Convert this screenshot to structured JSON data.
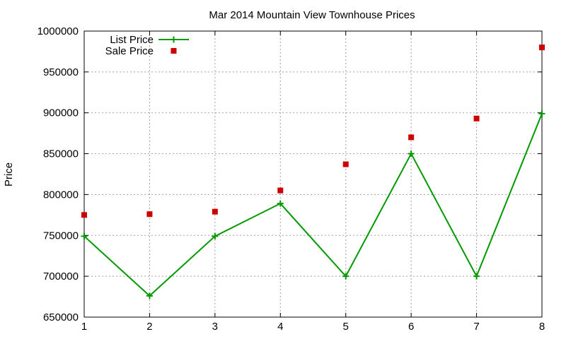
{
  "chart_data": {
    "type": "line",
    "title": "Mar 2014 Mountain View Townhouse Prices",
    "xlabel": "",
    "ylabel": "Price",
    "x": [
      1,
      2,
      3,
      4,
      5,
      6,
      7,
      8
    ],
    "xlim": [
      1,
      8
    ],
    "ylim": [
      650000,
      1000000
    ],
    "xticks": [
      "1",
      "2",
      "3",
      "4",
      "5",
      "6",
      "7",
      "8"
    ],
    "yticks": [
      "650000",
      "700000",
      "750000",
      "800000",
      "850000",
      "900000",
      "950000",
      "1000000"
    ],
    "grid": true,
    "legend_position": "top-left",
    "series": [
      {
        "name": "List Price",
        "style": "linespoints",
        "marker": "plus",
        "color": "#009900",
        "values": [
          749000,
          676000,
          749000,
          789000,
          700000,
          850000,
          700000,
          899000
        ]
      },
      {
        "name": "Sale Price",
        "style": "points",
        "marker": "square",
        "color": "#cc0000",
        "values": [
          775000,
          776000,
          779000,
          805000,
          837000,
          870000,
          893000,
          980000
        ]
      }
    ]
  }
}
